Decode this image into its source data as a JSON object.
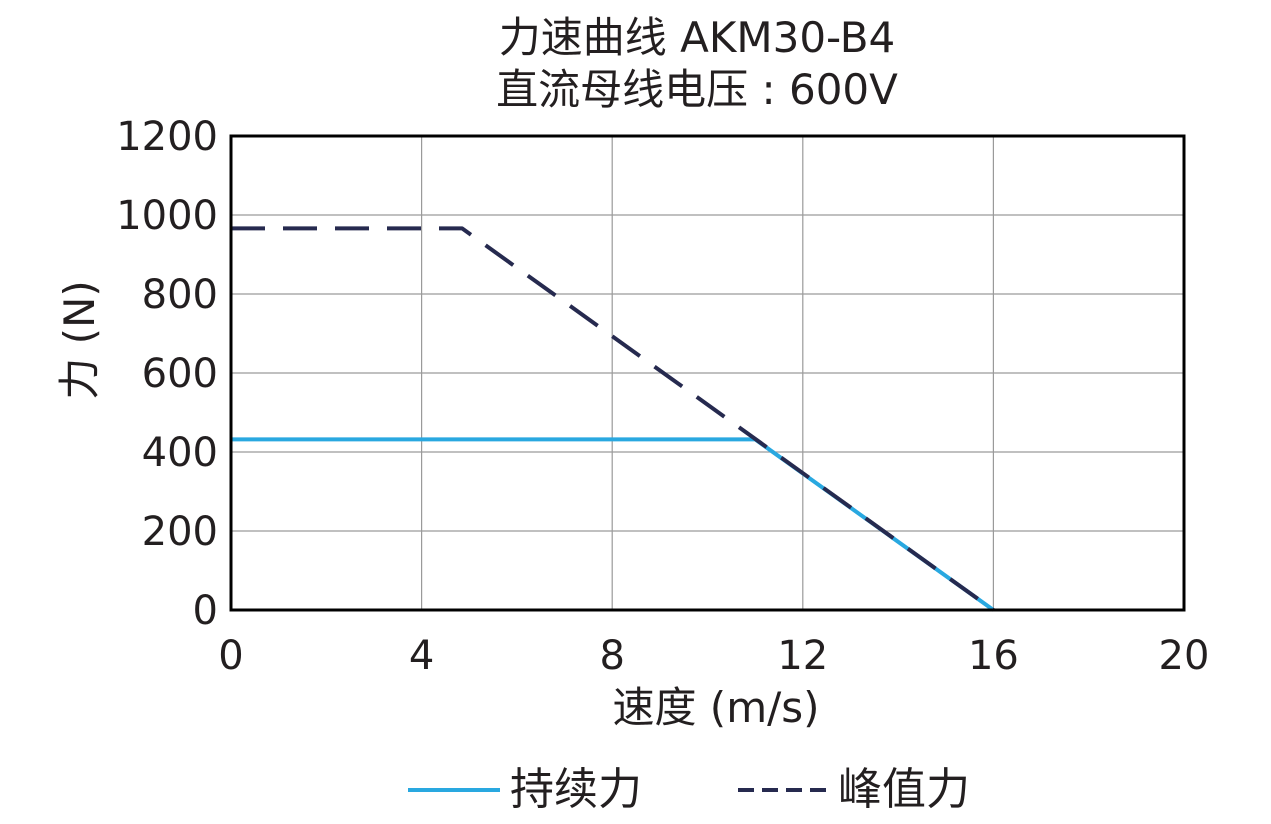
{
  "chart_data": {
    "type": "line",
    "title": "力速曲线 AKM30-B4",
    "subtitle": "直流母线电压 : 600V",
    "xlabel": "速度 (m/s)",
    "ylabel": "力 (N)",
    "xlim": [
      0,
      20
    ],
    "ylim": [
      0,
      1200
    ],
    "x_ticks": [
      "0",
      "4",
      "8",
      "12",
      "16",
      "20"
    ],
    "y_ticks": [
      "0",
      "200",
      "400",
      "600",
      "800",
      "1000",
      "1200"
    ],
    "x_tick_values": [
      0,
      4,
      8,
      12,
      16,
      20
    ],
    "y_tick_values": [
      0,
      200,
      400,
      600,
      800,
      1000,
      1200
    ],
    "grid": true,
    "legend_position": "bottom",
    "series": [
      {
        "name": "持续力",
        "style": "solid",
        "color": "#29a8e0",
        "x": [
          0,
          11.0,
          16.0
        ],
        "y": [
          432,
          432,
          0
        ]
      },
      {
        "name": "峰值力",
        "style": "dashed",
        "color": "#262a4f",
        "x": [
          0,
          4.85,
          16.0
        ],
        "y": [
          966,
          966,
          0
        ]
      }
    ]
  }
}
